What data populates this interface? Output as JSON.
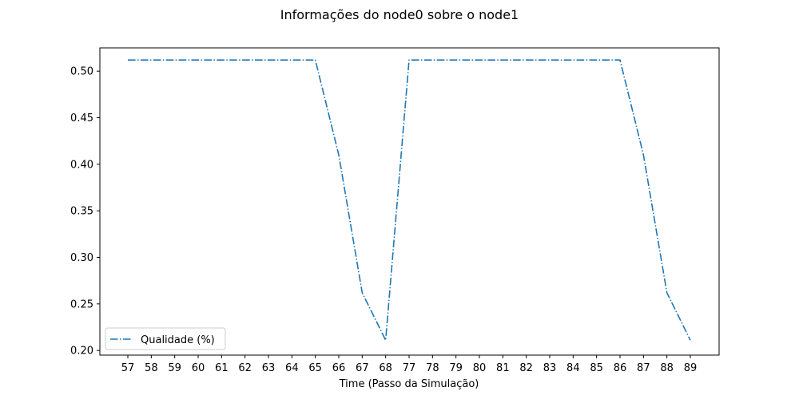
{
  "chart_data": {
    "type": "line",
    "title": "Informações do node0 sobre o node1",
    "xlabel": "Time (Passo da Simulação)",
    "ylabel": "",
    "categories": [
      "57",
      "58",
      "59",
      "60",
      "61",
      "62",
      "63",
      "64",
      "65",
      "66",
      "67",
      "68",
      "77",
      "78",
      "79",
      "80",
      "81",
      "82",
      "83",
      "84",
      "85",
      "86",
      "87",
      "88",
      "89"
    ],
    "ylim": [
      0.195,
      0.525
    ],
    "yticks": [
      0.2,
      0.25,
      0.3,
      0.35,
      0.4,
      0.45,
      0.5
    ],
    "ytick_labels": [
      "0.20",
      "0.25",
      "0.30",
      "0.35",
      "0.40",
      "0.45",
      "0.50"
    ],
    "series": [
      {
        "name": "Qualidade (%)",
        "color": "#1f77b4",
        "linestyle": "dash-dot",
        "values": [
          0.512,
          0.512,
          0.512,
          0.512,
          0.512,
          0.512,
          0.512,
          0.512,
          0.512,
          0.41,
          0.262,
          0.211,
          0.512,
          0.512,
          0.512,
          0.512,
          0.512,
          0.512,
          0.512,
          0.512,
          0.512,
          0.512,
          0.41,
          0.262,
          0.211
        ]
      }
    ],
    "legend": {
      "position": "lower-left"
    },
    "grid": false
  }
}
